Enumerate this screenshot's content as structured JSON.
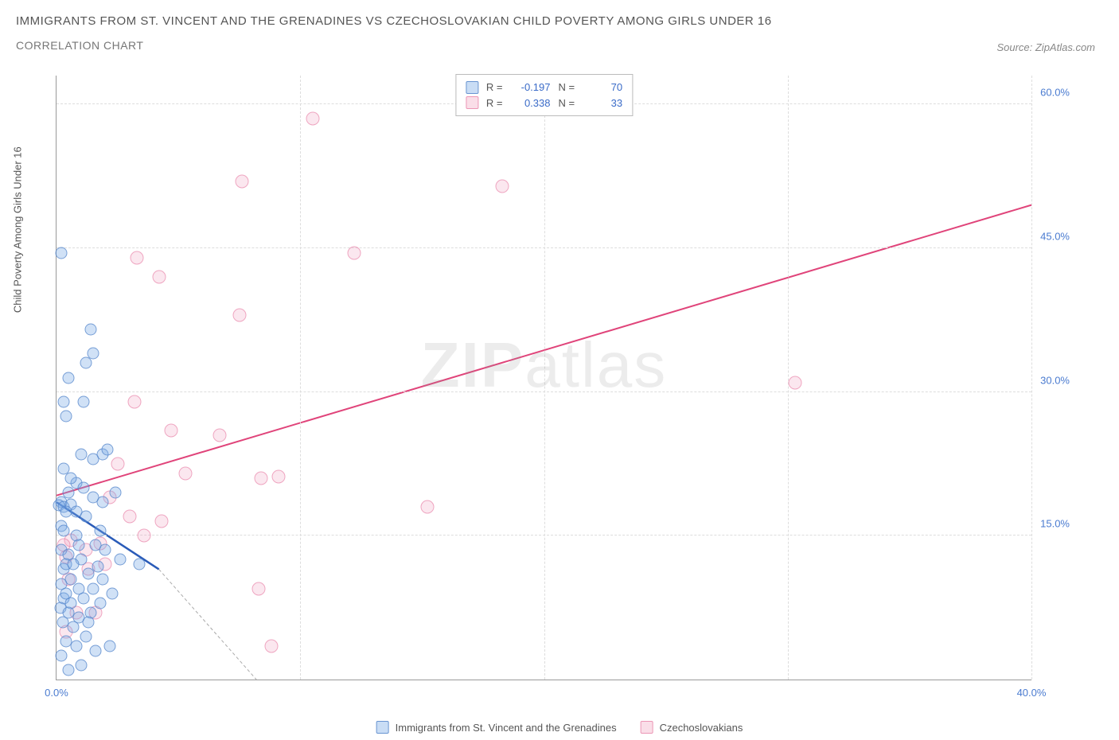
{
  "title": "IMMIGRANTS FROM ST. VINCENT AND THE GRENADINES VS CZECHOSLOVAKIAN CHILD POVERTY AMONG GIRLS UNDER 16",
  "subtitle": "CORRELATION CHART",
  "source": "Source: ZipAtlas.com",
  "y_axis_title": "Child Poverty Among Girls Under 16",
  "watermark_a": "ZIP",
  "watermark_b": "atlas",
  "chart": {
    "type": "scatter",
    "xlim": [
      0,
      40
    ],
    "ylim": [
      0,
      63
    ],
    "x_ticks": [
      0,
      10,
      20,
      30,
      40
    ],
    "x_tick_labels": [
      "0.0%",
      "",
      "",
      "",
      "40.0%"
    ],
    "y_ticks": [
      15,
      30,
      45,
      60
    ],
    "y_tick_labels": [
      "15.0%",
      "30.0%",
      "45.0%",
      "60.0%"
    ],
    "background_color": "#ffffff",
    "grid_color": "#dddddd",
    "axis_color": "#999999",
    "tick_label_color": "#4a7bd0",
    "series_a": {
      "name": "Immigrants from St. Vincent and the Grenadines",
      "color_fill": "rgba(120,170,230,0.35)",
      "color_stroke": "rgba(80,130,200,0.7)",
      "marker_size": 15,
      "R": "-0.197",
      "N": "70",
      "trend_color": "#2a5bb8",
      "trend_dash_color": "#aaaaaa",
      "trend": {
        "x1": 0,
        "y1": 18.5,
        "x2": 4.2,
        "y2": 11.5,
        "x2_ext": 8.2,
        "y2_ext": 0
      },
      "points": [
        [
          0.2,
          44.5
        ],
        [
          0.5,
          31.5
        ],
        [
          0.3,
          29
        ],
        [
          1.1,
          29
        ],
        [
          0.4,
          27.5
        ],
        [
          1.4,
          36.5
        ],
        [
          1.5,
          34
        ],
        [
          1.2,
          33
        ],
        [
          1.0,
          23.5
        ],
        [
          0.3,
          22
        ],
        [
          0.8,
          20.5
        ],
        [
          1.5,
          23
        ],
        [
          1.9,
          23.5
        ],
        [
          2.1,
          24
        ],
        [
          0.5,
          19.5
        ],
        [
          0.2,
          18.5
        ],
        [
          0.1,
          18.2
        ],
        [
          0.3,
          18
        ],
        [
          0.6,
          18.3
        ],
        [
          0.4,
          17.5
        ],
        [
          1.2,
          17
        ],
        [
          0.2,
          16
        ],
        [
          0.8,
          15
        ],
        [
          1.6,
          14
        ],
        [
          0.2,
          13.5
        ],
        [
          0.5,
          13
        ],
        [
          1.0,
          12.5
        ],
        [
          1.8,
          15.5
        ],
        [
          2.6,
          12.5
        ],
        [
          0.3,
          11.5
        ],
        [
          0.6,
          10.5
        ],
        [
          1.3,
          11
        ],
        [
          0.2,
          10
        ],
        [
          0.9,
          9.5
        ],
        [
          1.5,
          9.5
        ],
        [
          1.9,
          10.5
        ],
        [
          0.3,
          8.5
        ],
        [
          0.6,
          8
        ],
        [
          1.1,
          8.5
        ],
        [
          1.8,
          8
        ],
        [
          0.15,
          7.5
        ],
        [
          0.5,
          7
        ],
        [
          0.9,
          6.5
        ],
        [
          1.4,
          7
        ],
        [
          0.25,
          6
        ],
        [
          0.7,
          5.5
        ],
        [
          1.2,
          4.5
        ],
        [
          0.4,
          4
        ],
        [
          0.8,
          3.5
        ],
        [
          1.6,
          3
        ],
        [
          0.2,
          2.5
        ],
        [
          1.0,
          1.5
        ],
        [
          2.2,
          3.5
        ],
        [
          0.5,
          1
        ],
        [
          1.5,
          19
        ],
        [
          0.8,
          17.5
        ],
        [
          0.3,
          15.5
        ],
        [
          1.7,
          11.8
        ],
        [
          0.9,
          14
        ],
        [
          0.4,
          12
        ],
        [
          2.0,
          13.5
        ],
        [
          1.3,
          6
        ],
        [
          2.3,
          9
        ],
        [
          0.6,
          21
        ],
        [
          1.1,
          20
        ],
        [
          0.4,
          9
        ],
        [
          0.7,
          12
        ],
        [
          1.9,
          18.5
        ],
        [
          2.4,
          19.5
        ],
        [
          3.4,
          12
        ]
      ]
    },
    "series_b": {
      "name": "Czechoslovakians",
      "color_fill": "rgba(240,160,190,0.25)",
      "color_stroke": "rgba(230,120,160,0.6)",
      "marker_size": 17,
      "R": "0.338",
      "N": "33",
      "trend_color": "#e0447a",
      "trend": {
        "x1": 0,
        "y1": 19.2,
        "x2": 40,
        "y2": 49.5
      },
      "points": [
        [
          10.5,
          58.5
        ],
        [
          7.6,
          52
        ],
        [
          18.3,
          51.5
        ],
        [
          3.3,
          44
        ],
        [
          4.2,
          42
        ],
        [
          12.2,
          44.5
        ],
        [
          7.5,
          38
        ],
        [
          30.3,
          31
        ],
        [
          3.2,
          29
        ],
        [
          4.7,
          26
        ],
        [
          6.7,
          25.5
        ],
        [
          2.5,
          22.5
        ],
        [
          5.3,
          21.5
        ],
        [
          8.4,
          21
        ],
        [
          9.1,
          21.2
        ],
        [
          15.2,
          18
        ],
        [
          3.0,
          17
        ],
        [
          4.3,
          16.5
        ],
        [
          0.6,
          14.5
        ],
        [
          0.3,
          14
        ],
        [
          1.2,
          13.5
        ],
        [
          0.4,
          12.8
        ],
        [
          1.8,
          14.2
        ],
        [
          3.6,
          15
        ],
        [
          2.0,
          12
        ],
        [
          0.5,
          10.5
        ],
        [
          1.3,
          11.5
        ],
        [
          8.3,
          9.5
        ],
        [
          0.8,
          7
        ],
        [
          1.6,
          7
        ],
        [
          0.4,
          5
        ],
        [
          8.8,
          3.5
        ],
        [
          2.2,
          19
        ]
      ]
    }
  },
  "legend_stats": {
    "label_R": "R =",
    "label_N": "N ="
  },
  "bottom_legend": {
    "a": "Immigrants from St. Vincent and the Grenadines",
    "b": "Czechoslovakians"
  }
}
